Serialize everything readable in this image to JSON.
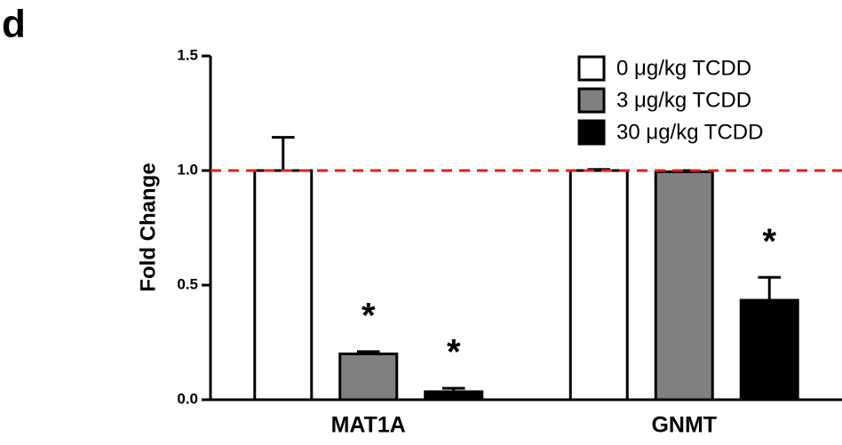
{
  "chart_data": {
    "type": "bar",
    "panel_label": "d",
    "y_label": "Fold Change",
    "categories": [
      "MAT1A",
      "GNMT"
    ],
    "series": [
      {
        "name": "0 μg/kg TCDD",
        "color": "#ffffff",
        "values": [
          1.0,
          1.0
        ],
        "errors": [
          0.145,
          0.005
        ],
        "significance": [
          null,
          null
        ]
      },
      {
        "name": "3 μg/kg TCDD",
        "color": "#808080",
        "values": [
          0.2,
          0.995
        ],
        "errors": [
          0.01,
          0.005
        ],
        "significance": [
          "*",
          null
        ]
      },
      {
        "name": "30 μg/kg TCDD",
        "color": "#000000",
        "values": [
          0.035,
          0.434
        ],
        "errors": [
          0.015,
          0.1
        ],
        "significance": [
          "*",
          "*"
        ]
      }
    ],
    "ylim": [
      0,
      1.5
    ],
    "yticks": [
      {
        "value": 0,
        "label": "0.0"
      },
      {
        "value": 0.5,
        "label": "0.5"
      },
      {
        "value": 1,
        "label": "1.0"
      },
      {
        "value": 1.5,
        "label": "1.5"
      }
    ],
    "reference_line": {
      "value": 1,
      "color": "#e02020"
    },
    "legend": "top-right"
  }
}
